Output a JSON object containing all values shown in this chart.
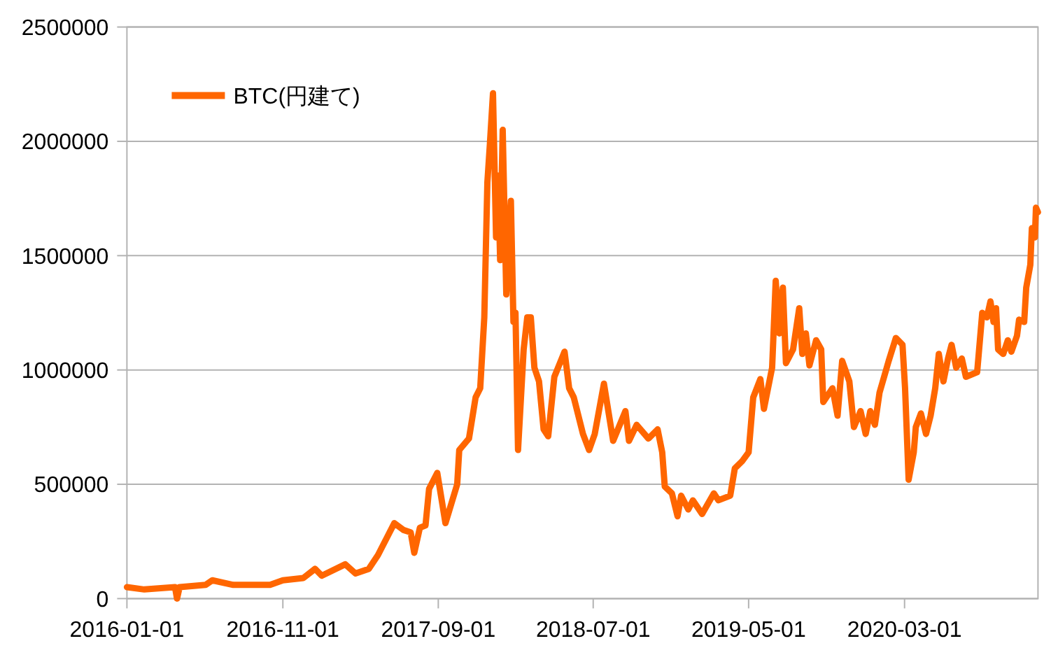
{
  "chart_data": {
    "type": "line",
    "x": [
      "2016-01-01",
      "2016-02-04",
      "2016-04-04",
      "2016-04-08",
      "2016-04-13",
      "2016-06-03",
      "2016-06-16",
      "2016-07-27",
      "2016-10-07",
      "2016-11-01",
      "2016-12-11",
      "2017-01-03",
      "2017-01-16",
      "2017-03-03",
      "2017-03-23",
      "2017-04-18",
      "2017-05-06",
      "2017-06-07",
      "2017-06-25",
      "2017-07-09",
      "2017-07-16",
      "2017-07-27",
      "2017-08-07",
      "2017-08-14",
      "2017-08-30",
      "2017-09-15",
      "2017-10-08",
      "2017-10-12",
      "2017-10-31",
      "2017-11-13",
      "2017-11-22",
      "2017-11-30",
      "2017-12-06",
      "2017-12-11",
      "2017-12-17",
      "2017-12-23",
      "2017-12-27",
      "2017-12-31",
      "2018-01-05",
      "2018-01-12",
      "2018-01-21",
      "2018-01-26",
      "2018-01-30",
      "2018-02-04",
      "2018-02-15",
      "2018-02-22",
      "2018-03-01",
      "2018-03-08",
      "2018-03-17",
      "2018-03-26",
      "2018-04-04",
      "2018-04-16",
      "2018-05-06",
      "2018-05-15",
      "2018-05-24",
      "2018-06-11",
      "2018-06-23",
      "2018-07-04",
      "2018-07-22",
      "2018-08-09",
      "2018-09-02",
      "2018-09-09",
      "2018-09-24",
      "2018-10-17",
      "2018-11-04",
      "2018-11-13",
      "2018-11-18",
      "2018-12-02",
      "2018-12-13",
      "2018-12-20",
      "2019-01-03",
      "2019-01-12",
      "2019-01-30",
      "2019-02-22",
      "2019-03-03",
      "2019-03-26",
      "2019-04-04",
      "2019-04-18",
      "2019-05-01",
      "2019-05-10",
      "2019-05-24",
      "2019-05-31",
      "2019-06-16",
      "2019-06-23",
      "2019-06-30",
      "2019-07-07",
      "2019-07-13",
      "2019-07-27",
      "2019-08-08",
      "2019-08-14",
      "2019-08-21",
      "2019-08-28",
      "2019-09-10",
      "2019-09-20",
      "2019-09-24",
      "2019-10-12",
      "2019-10-22",
      "2019-10-31",
      "2019-11-14",
      "2019-11-23",
      "2019-12-06",
      "2019-12-16",
      "2019-12-25",
      "2020-01-03",
      "2020-01-12",
      "2020-01-30",
      "2020-02-13",
      "2020-02-26",
      "2020-03-02",
      "2020-03-09",
      "2020-03-19",
      "2020-03-23",
      "2020-04-02",
      "2020-04-12",
      "2020-04-21",
      "2020-04-30",
      "2020-05-07",
      "2020-05-16",
      "2020-05-25",
      "2020-06-01",
      "2020-06-10",
      "2020-06-21",
      "2020-06-29",
      "2020-07-21",
      "2020-07-31",
      "2020-08-09",
      "2020-08-16",
      "2020-08-22",
      "2020-08-27",
      "2020-08-31",
      "2020-09-10",
      "2020-09-19",
      "2020-09-26",
      "2020-10-07",
      "2020-10-11",
      "2020-10-21",
      "2020-10-25",
      "2020-11-02",
      "2020-11-05",
      "2020-11-11",
      "2020-11-13",
      "2020-11-17"
    ],
    "series": [
      {
        "name": "BTC(円建て)",
        "color": "#ff6600",
        "values": [
          50000,
          40000,
          50000,
          0,
          50000,
          60000,
          80000,
          60000,
          60000,
          80000,
          90000,
          130000,
          100000,
          150000,
          110000,
          130000,
          190000,
          330000,
          300000,
          290000,
          200000,
          310000,
          320000,
          480000,
          550000,
          330000,
          500000,
          650000,
          700000,
          880000,
          920000,
          1230000,
          1820000,
          1990000,
          2210000,
          1580000,
          1850000,
          1480000,
          2050000,
          1330000,
          1740000,
          1210000,
          1250000,
          650000,
          1090000,
          1230000,
          1230000,
          1010000,
          950000,
          740000,
          710000,
          970000,
          1080000,
          920000,
          880000,
          720000,
          650000,
          720000,
          940000,
          690000,
          820000,
          690000,
          760000,
          700000,
          740000,
          640000,
          490000,
          460000,
          360000,
          450000,
          390000,
          430000,
          370000,
          460000,
          430000,
          450000,
          570000,
          600000,
          640000,
          880000,
          960000,
          830000,
          1010000,
          1390000,
          1160000,
          1360000,
          1030000,
          1090000,
          1270000,
          1070000,
          1160000,
          1020000,
          1130000,
          1090000,
          860000,
          920000,
          800000,
          1040000,
          950000,
          750000,
          820000,
          720000,
          820000,
          760000,
          900000,
          1040000,
          1140000,
          1110000,
          920000,
          520000,
          640000,
          750000,
          810000,
          720000,
          800000,
          920000,
          1070000,
          950000,
          1050000,
          1110000,
          1010000,
          1050000,
          970000,
          990000,
          1250000,
          1230000,
          1300000,
          1210000,
          1270000,
          1090000,
          1070000,
          1130000,
          1080000,
          1150000,
          1220000,
          1210000,
          1360000,
          1460000,
          1620000,
          1580000,
          1710000,
          1690000
        ]
      }
    ],
    "xlim": [
      "2016-01-01",
      "2020-11-17"
    ],
    "xticks": [
      "2016-01-01",
      "2016-11-01",
      "2017-09-01",
      "2018-07-01",
      "2019-05-01",
      "2020-03-01"
    ],
    "ylim": [
      0,
      2500000
    ],
    "yticks": [
      0,
      500000,
      1000000,
      1500000,
      2000000,
      2500000
    ],
    "grid": "y",
    "legend": "top left"
  }
}
